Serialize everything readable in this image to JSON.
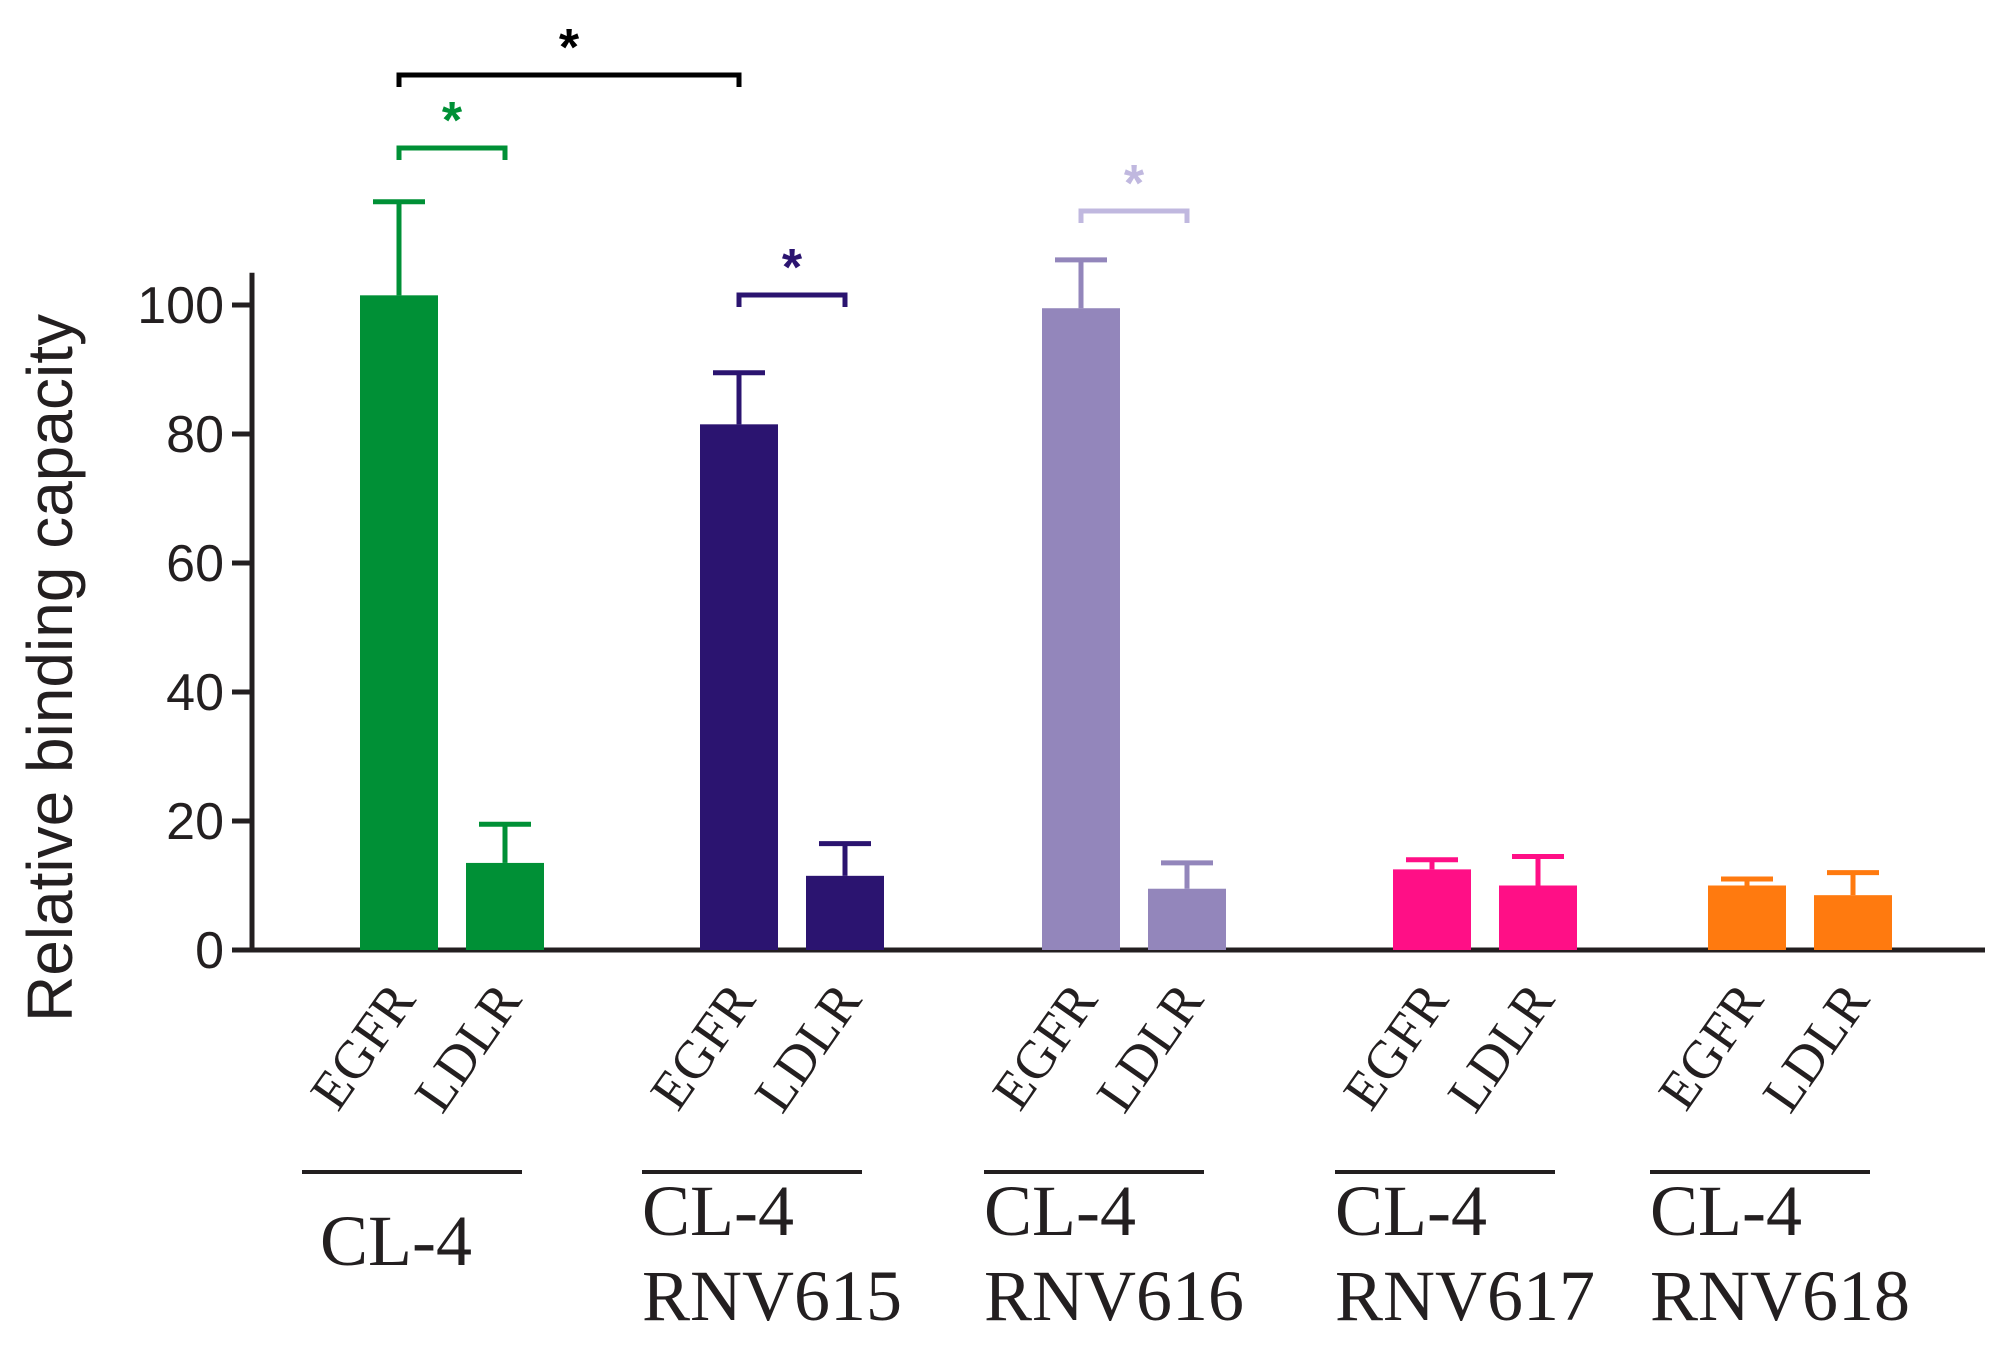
{
  "chart_data": {
    "type": "bar",
    "title": "",
    "xlabel": "",
    "ylabel": "Relative binding capacity",
    "ylim": [
      0,
      105
    ],
    "yticks": [
      0,
      20,
      40,
      60,
      80,
      100
    ],
    "grid": false,
    "groups": [
      {
        "lines": [
          "CL-4"
        ],
        "color": "#009036",
        "bars": [
          {
            "label": "EGFR",
            "value": 101.5,
            "error": 14.5
          },
          {
            "label": "LDLR",
            "value": 13.5,
            "error": 6
          }
        ]
      },
      {
        "lines": [
          "CL-4",
          "RNV615"
        ],
        "color": "#2b1470",
        "bars": [
          {
            "label": "EGFR",
            "value": 81.5,
            "error": 8
          },
          {
            "label": "LDLR",
            "value": 11.5,
            "error": 5
          }
        ]
      },
      {
        "lines": [
          "CL-4",
          "RNV616"
        ],
        "color": "#9386bb",
        "bars": [
          {
            "label": "EGFR",
            "value": 99.5,
            "error": 7.5
          },
          {
            "label": "LDLR",
            "value": 9.5,
            "error": 4
          }
        ]
      },
      {
        "lines": [
          "CL-4",
          "RNV617"
        ],
        "color": "#ff0f86",
        "bars": [
          {
            "label": "EGFR",
            "value": 12.5,
            "error": 1.5
          },
          {
            "label": "LDLR",
            "value": 10,
            "error": 4.5
          }
        ]
      },
      {
        "lines": [
          "CL-4",
          "RNV618"
        ],
        "color": "#ff7a0f",
        "bars": [
          {
            "label": "EGFR",
            "value": 10,
            "error": 1
          },
          {
            "label": "LDLR",
            "value": 8.5,
            "error": 3.5
          }
        ]
      }
    ],
    "significance": [
      {
        "label": "*",
        "from": [
          0,
          0
        ],
        "to": [
          1,
          0
        ],
        "color": "#000000"
      },
      {
        "label": "*",
        "from": [
          0,
          0
        ],
        "to": [
          0,
          1
        ],
        "color": "#009036"
      },
      {
        "label": "*",
        "from": [
          1,
          0
        ],
        "to": [
          1,
          1
        ],
        "color": "#2b1470"
      },
      {
        "label": "*",
        "from": [
          2,
          0
        ],
        "to": [
          2,
          1
        ],
        "color": "#c0b8df"
      }
    ]
  }
}
